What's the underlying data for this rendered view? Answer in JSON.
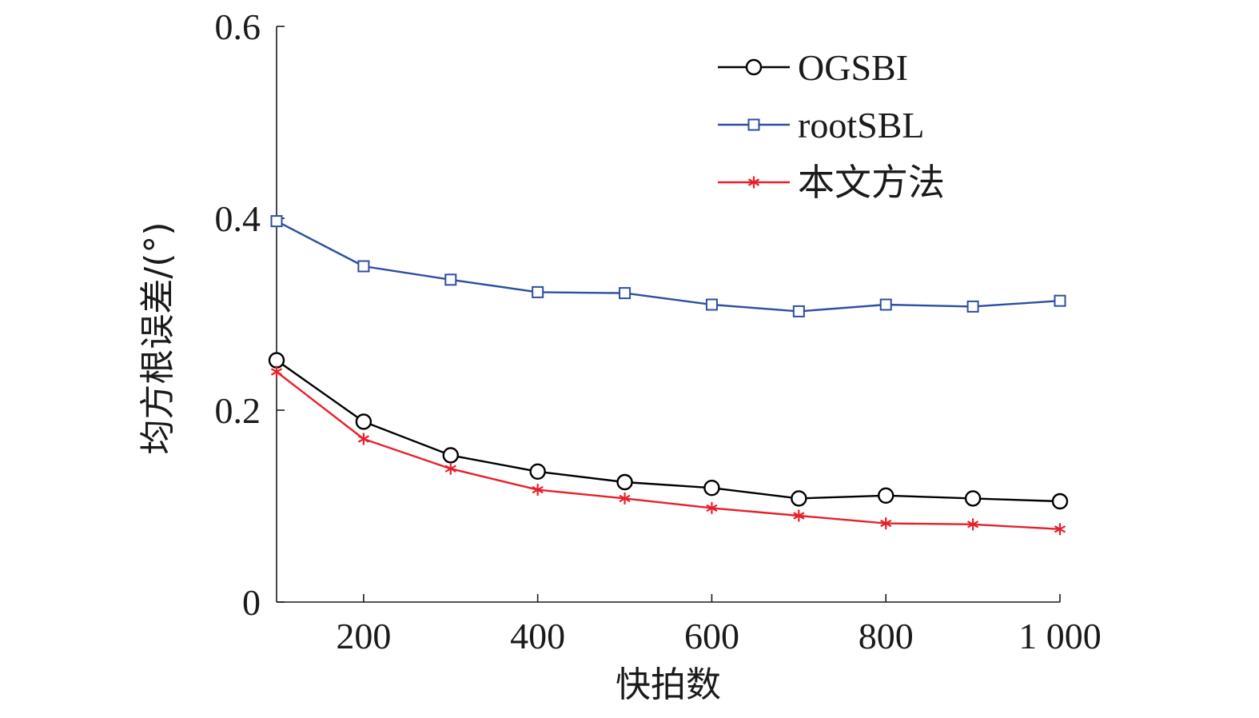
{
  "chart_data": {
    "type": "line",
    "title": "",
    "xlabel": "快拍数",
    "ylabel": "均方根误差/(°)",
    "x": [
      100,
      200,
      300,
      400,
      500,
      600,
      700,
      800,
      900,
      1000
    ],
    "xlim": [
      100,
      1000
    ],
    "ylim": [
      0,
      0.6
    ],
    "x_ticks": [
      200,
      400,
      600,
      800,
      1000
    ],
    "x_tick_labels": [
      "200",
      "400",
      "600",
      "800",
      "1 000"
    ],
    "y_ticks": [
      0,
      0.2,
      0.4,
      0.6
    ],
    "y_tick_labels": [
      "0",
      "0.2",
      "0.4",
      "0.6"
    ],
    "grid": false,
    "legend_position": "top-right",
    "series": [
      {
        "name": "OGSBI",
        "color": "#000000",
        "marker": "circle",
        "values": [
          0.252,
          0.188,
          0.153,
          0.136,
          0.125,
          0.119,
          0.108,
          0.111,
          0.108,
          0.105
        ]
      },
      {
        "name": "rootSBL",
        "color": "#2f4ea0",
        "marker": "square",
        "values": [
          0.397,
          0.35,
          0.336,
          0.323,
          0.322,
          0.31,
          0.303,
          0.31,
          0.308,
          0.314
        ]
      },
      {
        "name": "本文方法",
        "color": "#e8202a",
        "marker": "asterisk",
        "values": [
          0.24,
          0.17,
          0.139,
          0.117,
          0.108,
          0.098,
          0.09,
          0.082,
          0.081,
          0.076
        ]
      }
    ]
  }
}
